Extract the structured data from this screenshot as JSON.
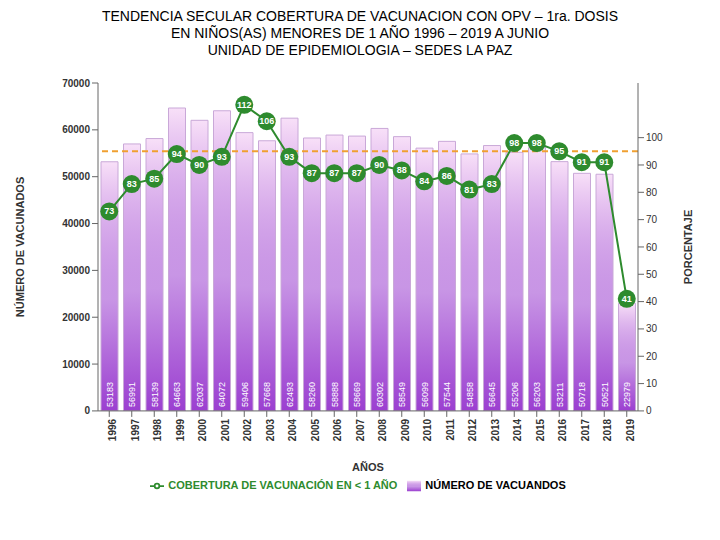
{
  "chart_data": {
    "type": "bar",
    "title": "TENDENCIA SECULAR COBERTURA DE VACUNACION CON OPV – 1ra. DOSIS\nEN NIÑOS(AS) MENORES DE 1 AÑO 1996 – 2019 A JUNIO\nUNIDAD DE EPIDEMIOLOGIA – SEDES LA PAZ",
    "x_label": "AÑOS",
    "y_label": "NÚMERO DE VACUNADOS",
    "y2_label": "PORCENTAJE",
    "categories": [
      "1996",
      "1997",
      "1998",
      "1999",
      "2000",
      "2001",
      "2002",
      "2003",
      "2004",
      "2005",
      "2006",
      "2007",
      "2008",
      "2009",
      "2010",
      "2011",
      "2012",
      "2013",
      "2014",
      "2015",
      "2016",
      "2017",
      "2018",
      "2019"
    ],
    "series": [
      {
        "name": "NÚMERO DE VACUANDOS",
        "type": "bar",
        "color": "#9b3fd0",
        "values": [
          53183,
          56991,
          58139,
          64663,
          62037,
          64072,
          59406,
          57668,
          62493,
          58260,
          58888,
          58669,
          60302,
          58549,
          56099,
          57544,
          54858,
          56645,
          55206,
          56203,
          53211,
          50718,
          50521,
          22979
        ]
      },
      {
        "name": "COBERTURA DE VACUNACIÓN EN < 1 AÑO",
        "type": "line",
        "axis": "y2",
        "color": "#2e8b2e",
        "marker": "circle",
        "values": [
          73,
          83,
          85,
          94,
          90,
          93,
          112,
          106,
          93,
          87,
          87,
          87,
          90,
          88,
          84,
          86,
          81,
          83,
          98,
          98,
          95,
          91,
          91,
          41
        ]
      }
    ],
    "reference_line": {
      "value": 95,
      "axis": "y2",
      "color": "#f0a030",
      "line_style": "dashed"
    },
    "ylim": [
      0,
      70000
    ],
    "yticks": [
      0,
      10000,
      20000,
      30000,
      40000,
      50000,
      60000,
      70000
    ],
    "y2lim": [
      0,
      120
    ],
    "y2ticks": [
      0,
      10,
      20,
      30,
      40,
      50,
      60,
      70,
      80,
      90,
      100
    ],
    "data_labels": true,
    "grid": false,
    "legend": "bottom"
  }
}
